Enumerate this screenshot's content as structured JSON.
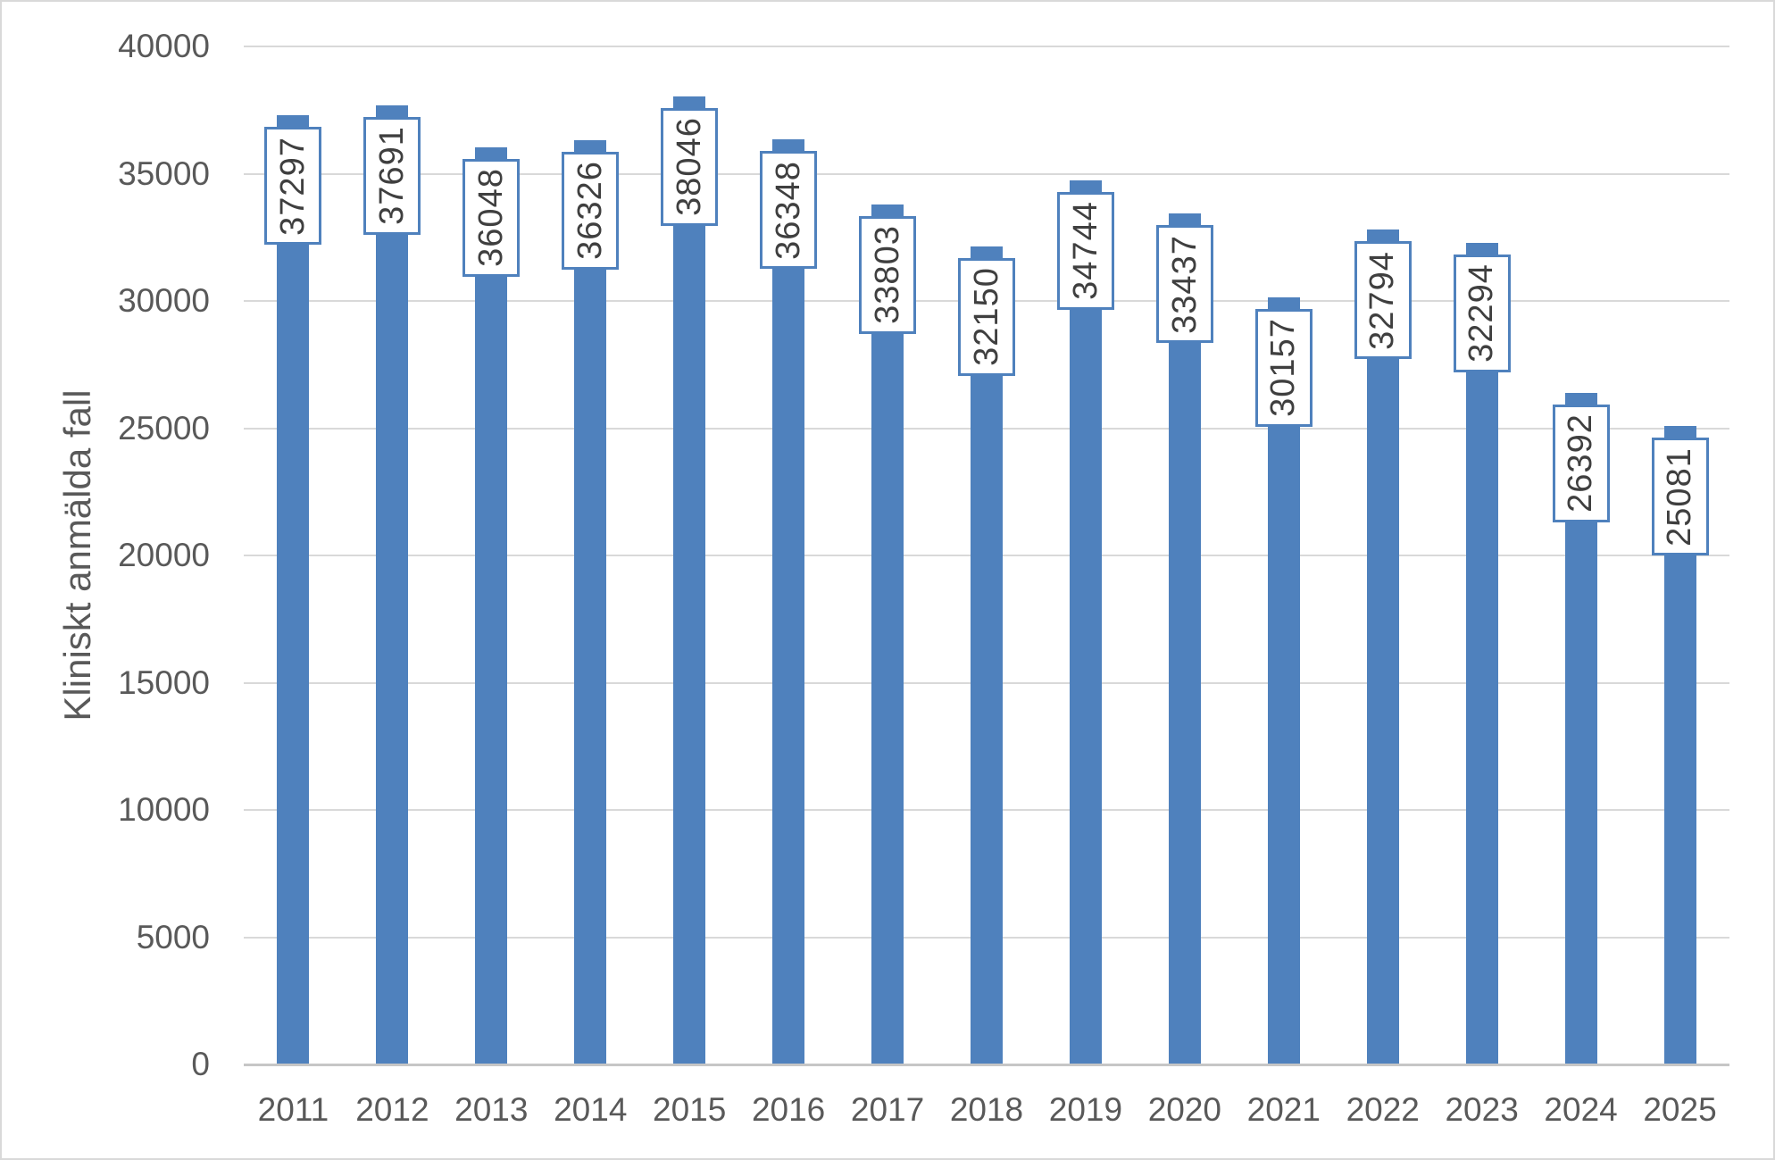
{
  "chart_data": {
    "type": "bar",
    "title": "",
    "categories": [
      "2011",
      "2012",
      "2013",
      "2014",
      "2015",
      "2016",
      "2017",
      "2018",
      "2019",
      "2020",
      "2021",
      "2022",
      "2023",
      "2024",
      "2025"
    ],
    "values": [
      37297,
      37691,
      36048,
      36326,
      38046,
      36348,
      33803,
      32150,
      34744,
      33437,
      30157,
      32794,
      32294,
      26392,
      25081
    ],
    "xlabel": "",
    "ylabel": "Kliniskt anmälda fall",
    "ylim": [
      0,
      40000
    ],
    "yticks": [
      0,
      5000,
      10000,
      15000,
      20000,
      25000,
      30000,
      35000,
      40000
    ],
    "grid": "horizontal",
    "legend": "none",
    "data_labels": "boxed, rotated 90 degrees, inside end of bars",
    "colors": {
      "bar": "#4F81BD",
      "label_box_border": "#4F81BD",
      "label_box_fill": "#FFFFFF",
      "label_text": "#3F3F3F",
      "axis_text": "#595959",
      "gridline": "#D9D9D9",
      "axis_line": "#C6C6C6",
      "chart_border": "#D9D9D9",
      "background": "#FFFFFF"
    }
  }
}
